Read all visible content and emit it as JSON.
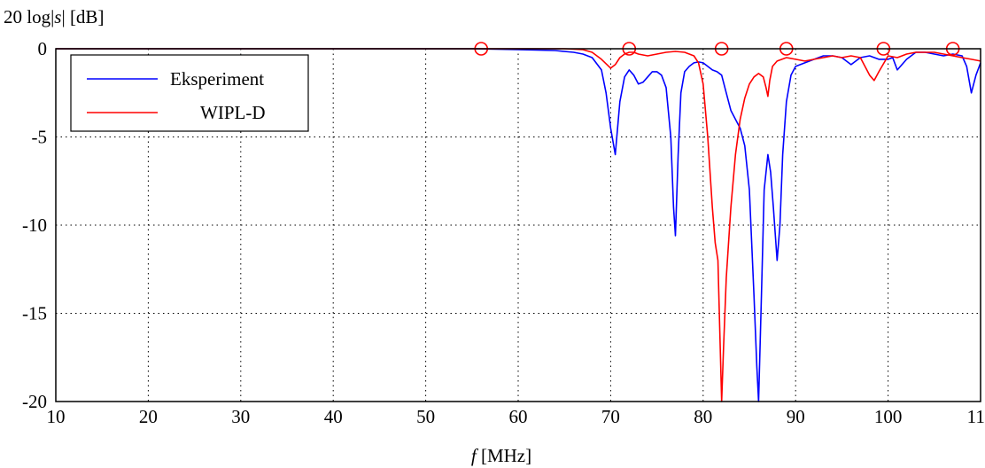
{
  "chart_data": {
    "type": "line",
    "title": "",
    "ylabel": {
      "prefix": "20 log|",
      "var": "s",
      "suffix": "|  [dB]"
    },
    "xlabel": {
      "var": "f",
      "unit": " [MHz]"
    },
    "xlim": [
      10,
      110
    ],
    "ylim": [
      -20,
      0
    ],
    "xticks": [
      10,
      20,
      30,
      40,
      50,
      60,
      70,
      80,
      90,
      100,
      110
    ],
    "yticks": [
      0,
      -5,
      -10,
      -15,
      -20
    ],
    "grid": true,
    "grid_style": "dotted",
    "legend_position": "top-left",
    "series": [
      {
        "name": "Eksperiment",
        "color": "#0000ff",
        "x": [
          10,
          55,
          60,
          64,
          66,
          67,
          68,
          69,
          69.5,
          70,
          70.5,
          71,
          71.5,
          72,
          72.5,
          73,
          73.5,
          74,
          74.5,
          75,
          75.5,
          76,
          76.5,
          76.8,
          77,
          77.3,
          77.6,
          78,
          78.5,
          79,
          79.5,
          80,
          80.5,
          81,
          81.5,
          82,
          82.5,
          83,
          83.5,
          84,
          84.5,
          85,
          85.5,
          85.8,
          86,
          86.3,
          86.6,
          87,
          87.3,
          87.6,
          88,
          88.3,
          88.6,
          89,
          89.5,
          90,
          91,
          92,
          93,
          94,
          95,
          96,
          97,
          98,
          99,
          100,
          100.5,
          101,
          102,
          103,
          104,
          105,
          106,
          107,
          108,
          108.5,
          109,
          109.5,
          110
        ],
        "values": [
          0,
          0,
          -0.05,
          -0.1,
          -0.2,
          -0.3,
          -0.5,
          -1.2,
          -2.5,
          -4.5,
          -6.0,
          -3.0,
          -1.6,
          -1.2,
          -1.5,
          -2.0,
          -1.9,
          -1.6,
          -1.3,
          -1.3,
          -1.5,
          -2.2,
          -5.0,
          -9.0,
          -10.6,
          -6.0,
          -2.5,
          -1.3,
          -1.0,
          -0.8,
          -0.75,
          -0.8,
          -1.0,
          -1.2,
          -1.3,
          -1.5,
          -2.5,
          -3.5,
          -4.0,
          -4.5,
          -5.5,
          -8.0,
          -14.0,
          -18.0,
          -20.0,
          -14.0,
          -8.0,
          -6.0,
          -7.0,
          -9.0,
          -12.0,
          -10.0,
          -6.0,
          -3.0,
          -1.5,
          -1.0,
          -0.8,
          -0.6,
          -0.4,
          -0.4,
          -0.5,
          -0.9,
          -0.5,
          -0.4,
          -0.6,
          -0.6,
          -0.5,
          -1.2,
          -0.6,
          -0.2,
          -0.2,
          -0.3,
          -0.4,
          -0.3,
          -0.4,
          -1.0,
          -2.5,
          -1.5,
          -0.8
        ]
      },
      {
        "name": "WIPL-D",
        "color": "#ff0000",
        "x": [
          10,
          55,
          60,
          65,
          67,
          68,
          69,
          70,
          70.5,
          71,
          71.5,
          72,
          72.5,
          73,
          74,
          75,
          76,
          77,
          78,
          79,
          79.5,
          80,
          80.5,
          81,
          81.3,
          81.6,
          81.8,
          82,
          82.2,
          82.5,
          83,
          83.5,
          84,
          84.5,
          85,
          85.5,
          86,
          86.5,
          86.8,
          87,
          87.2,
          87.5,
          88,
          89,
          90,
          91,
          92,
          93,
          94,
          95,
          96,
          97,
          98,
          98.5,
          99,
          100,
          101,
          102,
          103,
          104,
          105,
          106,
          107,
          108,
          109,
          110
        ],
        "values": [
          0,
          0,
          0,
          0,
          -0.05,
          -0.2,
          -0.6,
          -1.1,
          -0.9,
          -0.5,
          -0.3,
          -0.2,
          -0.2,
          -0.3,
          -0.4,
          -0.3,
          -0.2,
          -0.15,
          -0.2,
          -0.4,
          -0.8,
          -2.0,
          -5.0,
          -9.0,
          -11.0,
          -12.0,
          -16.0,
          -20.0,
          -17.0,
          -13.0,
          -9.0,
          -6.0,
          -4.0,
          -2.8,
          -2.0,
          -1.6,
          -1.4,
          -1.6,
          -2.2,
          -2.7,
          -1.8,
          -1.0,
          -0.7,
          -0.5,
          -0.6,
          -0.7,
          -0.6,
          -0.5,
          -0.4,
          -0.5,
          -0.4,
          -0.5,
          -1.5,
          -1.8,
          -1.3,
          -0.4,
          -0.5,
          -0.3,
          -0.2,
          -0.2,
          -0.2,
          -0.3,
          -0.4,
          -0.5,
          -0.6,
          -0.7
        ]
      }
    ],
    "markers": {
      "shape": "circle",
      "color": "#ff0000",
      "x": [
        56,
        72,
        82,
        89,
        99.5,
        107
      ],
      "y": [
        0,
        0,
        0,
        0,
        0,
        0
      ]
    }
  }
}
